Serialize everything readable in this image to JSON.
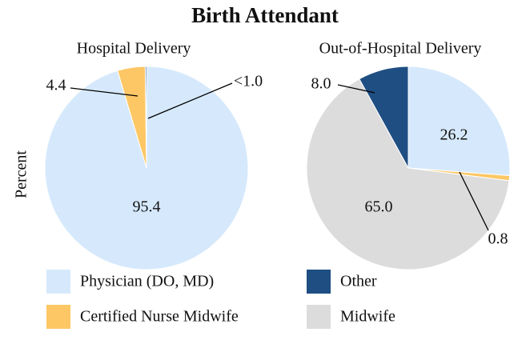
{
  "title": "Birth Attendant",
  "ylabel": "Percent",
  "chart_data": [
    {
      "type": "pie",
      "title": "Hospital Delivery",
      "categories": [
        "Physician (DO, MD)",
        "Certified Nurse Midwife",
        "Other"
      ],
      "values": [
        95.4,
        4.4,
        0.2
      ],
      "value_labels": [
        "95.4",
        "4.4",
        "<1.0"
      ],
      "colors": [
        "#d6e9fc",
        "#fdc765",
        "#1f4e82"
      ]
    },
    {
      "type": "pie",
      "title": "Out-of-Hospital Delivery",
      "categories": [
        "Physician (DO, MD)",
        "Certified Nurse Midwife",
        "Midwife",
        "Other"
      ],
      "values": [
        26.2,
        0.8,
        65.0,
        8.0
      ],
      "value_labels": [
        "26.2",
        "0.8",
        "65.0",
        "8.0"
      ],
      "colors": [
        "#d6e9fc",
        "#fdc765",
        "#dcdcdc",
        "#1f4e82"
      ]
    }
  ]
}
